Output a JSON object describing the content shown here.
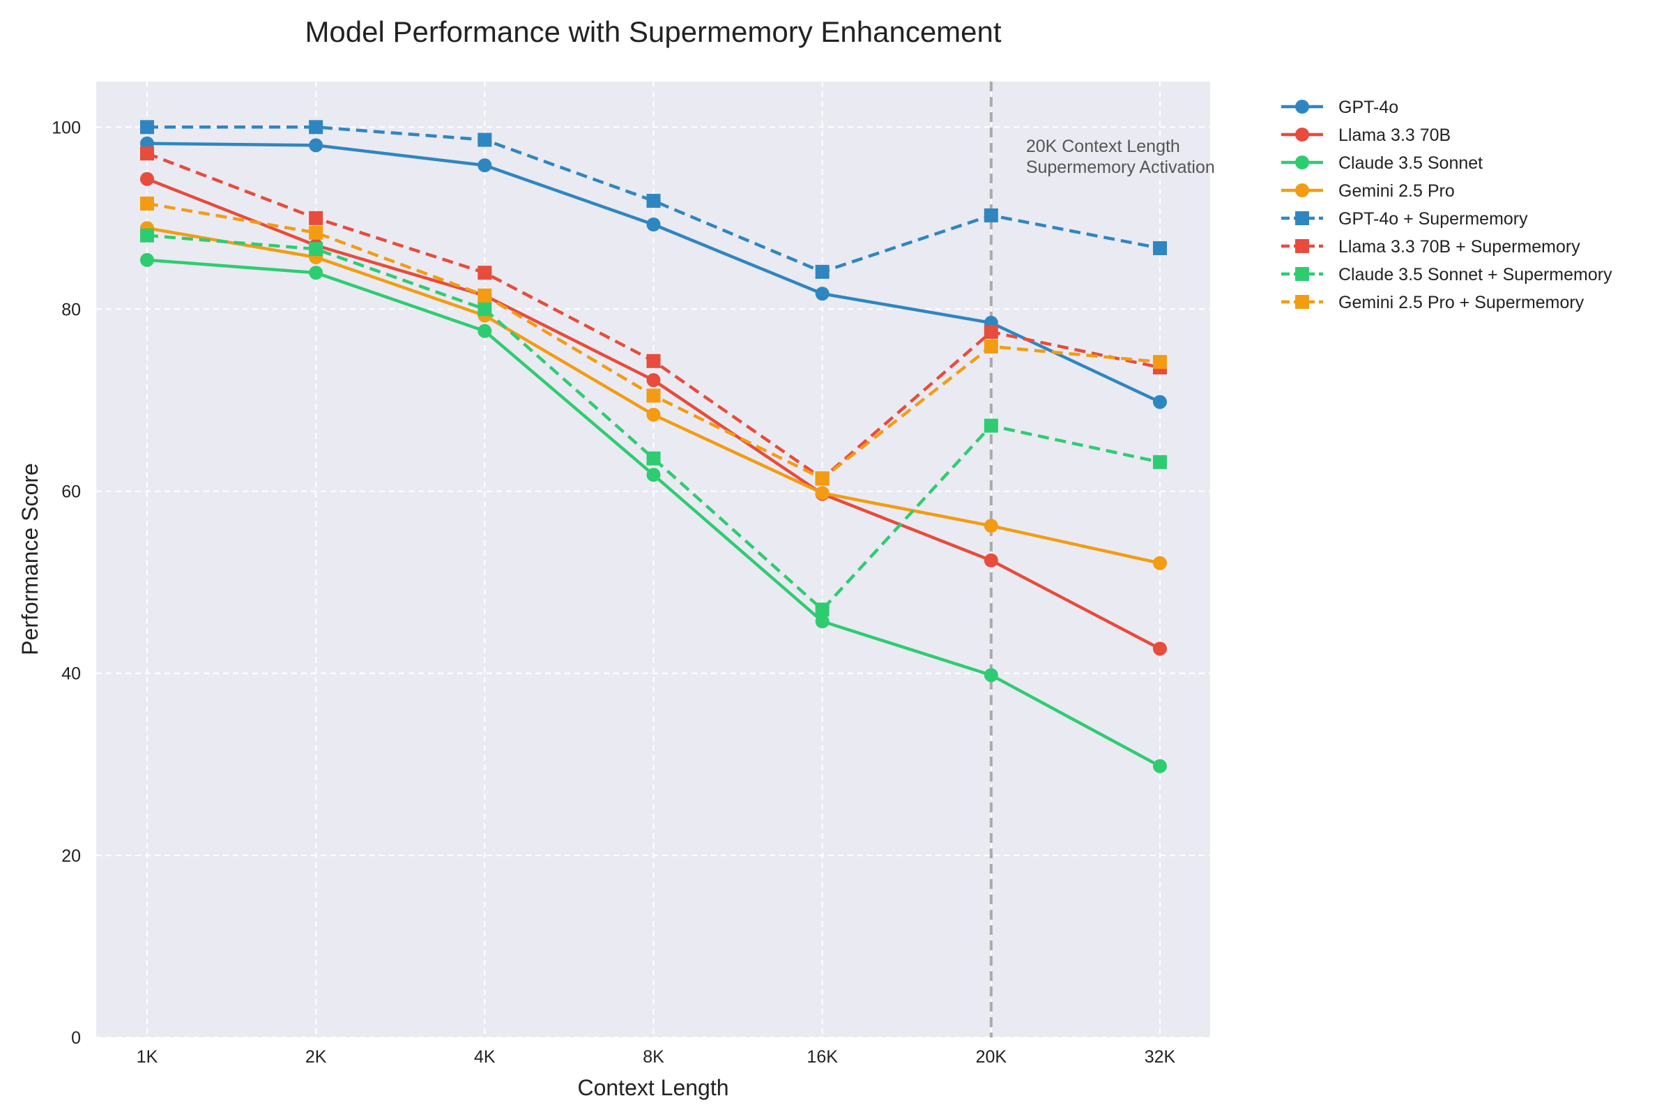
{
  "chart_data": {
    "type": "line",
    "title": "Model Performance with Supermemory Enhancement",
    "xlabel": "Context Length",
    "ylabel": "Performance Score",
    "categories": [
      "1K",
      "2K",
      "4K",
      "8K",
      "16K",
      "20K",
      "32K"
    ],
    "ylim": [
      0,
      105
    ],
    "yticks": [
      0,
      20,
      40,
      60,
      80,
      100
    ],
    "grid": true,
    "legend_position": "outside-right",
    "vertical_marker": {
      "category": "20K",
      "label_lines": [
        "20K Context Length",
        "Supermemory Activation"
      ],
      "color": "#aaaaaa"
    },
    "series": [
      {
        "name": "GPT-4o",
        "color": "#2e86c1",
        "style": "solid",
        "marker": "circle",
        "values": [
          98.2,
          98.0,
          95.8,
          89.3,
          81.7,
          78.5,
          69.8
        ]
      },
      {
        "name": "Llama 3.3 70B",
        "color": "#e74c3c",
        "style": "solid",
        "marker": "circle",
        "values": [
          94.3,
          87.0,
          81.5,
          72.2,
          59.7,
          52.4,
          42.7
        ]
      },
      {
        "name": "Claude 3.5 Sonnet",
        "color": "#2ecc71",
        "style": "solid",
        "marker": "circle",
        "values": [
          85.4,
          84.0,
          77.6,
          61.8,
          45.7,
          39.8,
          29.8
        ]
      },
      {
        "name": "Gemini 2.5 Pro",
        "color": "#f39c12",
        "style": "solid",
        "marker": "circle",
        "values": [
          88.9,
          85.7,
          79.3,
          68.4,
          59.8,
          56.2,
          52.1
        ]
      },
      {
        "name": "GPT-4o + Supermemory",
        "color": "#2e86c1",
        "style": "dashed",
        "marker": "square",
        "values": [
          100.0,
          100.0,
          98.6,
          91.9,
          84.1,
          90.3,
          86.7
        ]
      },
      {
        "name": "Llama 3.3 70B + Supermemory",
        "color": "#e74c3c",
        "style": "dashed",
        "marker": "square",
        "values": [
          97.1,
          90.0,
          84.0,
          74.3,
          61.4,
          77.5,
          73.6
        ]
      },
      {
        "name": "Claude 3.5 Sonnet + Supermemory",
        "color": "#2ecc71",
        "style": "dashed",
        "marker": "square",
        "values": [
          88.1,
          86.6,
          80.0,
          63.6,
          47.0,
          67.2,
          63.2
        ]
      },
      {
        "name": "Gemini 2.5 Pro + Supermemory",
        "color": "#f39c12",
        "style": "dashed",
        "marker": "square",
        "values": [
          91.6,
          88.4,
          81.5,
          70.5,
          61.4,
          75.9,
          74.2
        ]
      }
    ]
  }
}
